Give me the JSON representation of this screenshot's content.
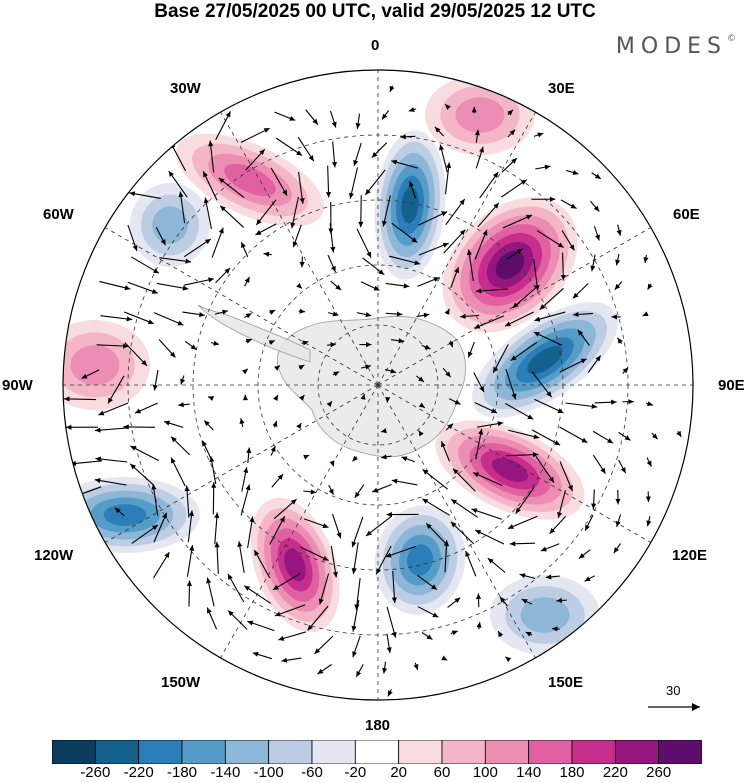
{
  "title": "Base 27/05/2025 00 UTC, valid 29/05/2025 12 UTC",
  "logo": "MODES",
  "logo_mark": "©",
  "longitude_labels": {
    "lon_0": "0",
    "lon_30e": "30E",
    "lon_60e": "60E",
    "lon_90e": "90E",
    "lon_120e": "120E",
    "lon_150e": "150E",
    "lon_180": "180",
    "lon_150w": "150W",
    "lon_120w": "120W",
    "lon_90w": "90W",
    "lon_60w": "60W",
    "lon_30w": "30W"
  },
  "reference_vector_label": "30",
  "colorbar": {
    "ticks": [
      "-260",
      "-220",
      "-180",
      "-140",
      "-100",
      "-60",
      "-20",
      "20",
      "60",
      "100",
      "140",
      "180",
      "220",
      "260"
    ],
    "colors": [
      "#0b3d5e",
      "#14608f",
      "#2b7eb8",
      "#559cc9",
      "#8eb6d7",
      "#bccde4",
      "#e4e6f1",
      "#ffffff",
      "#f9dcdf",
      "#f4b6c6",
      "#ec8db3",
      "#e060a2",
      "#c72d8c",
      "#95167f",
      "#5e0d6c"
    ]
  },
  "anomalies": [
    {
      "name": "positive anomaly near 45E",
      "value": 260
    },
    {
      "name": "negative anomaly near 0",
      "value": -200
    },
    {
      "name": "negative anomaly near 75E",
      "value": -200
    },
    {
      "name": "positive anomaly near 105E",
      "value": 200
    },
    {
      "name": "negative anomaly near 165E",
      "value": -160
    },
    {
      "name": "positive anomaly near 155W",
      "value": 200
    },
    {
      "name": "negative anomaly near 115W",
      "value": -180
    },
    {
      "name": "positive anomaly near 90W",
      "value": 100
    },
    {
      "name": "positive anomaly near 35W",
      "value": 150
    },
    {
      "name": "negative anomaly near 50W",
      "value": -80
    },
    {
      "name": "positive anomaly near 25E",
      "value": 100
    },
    {
      "name": "negative anomaly near 140E",
      "value": -100
    }
  ]
}
